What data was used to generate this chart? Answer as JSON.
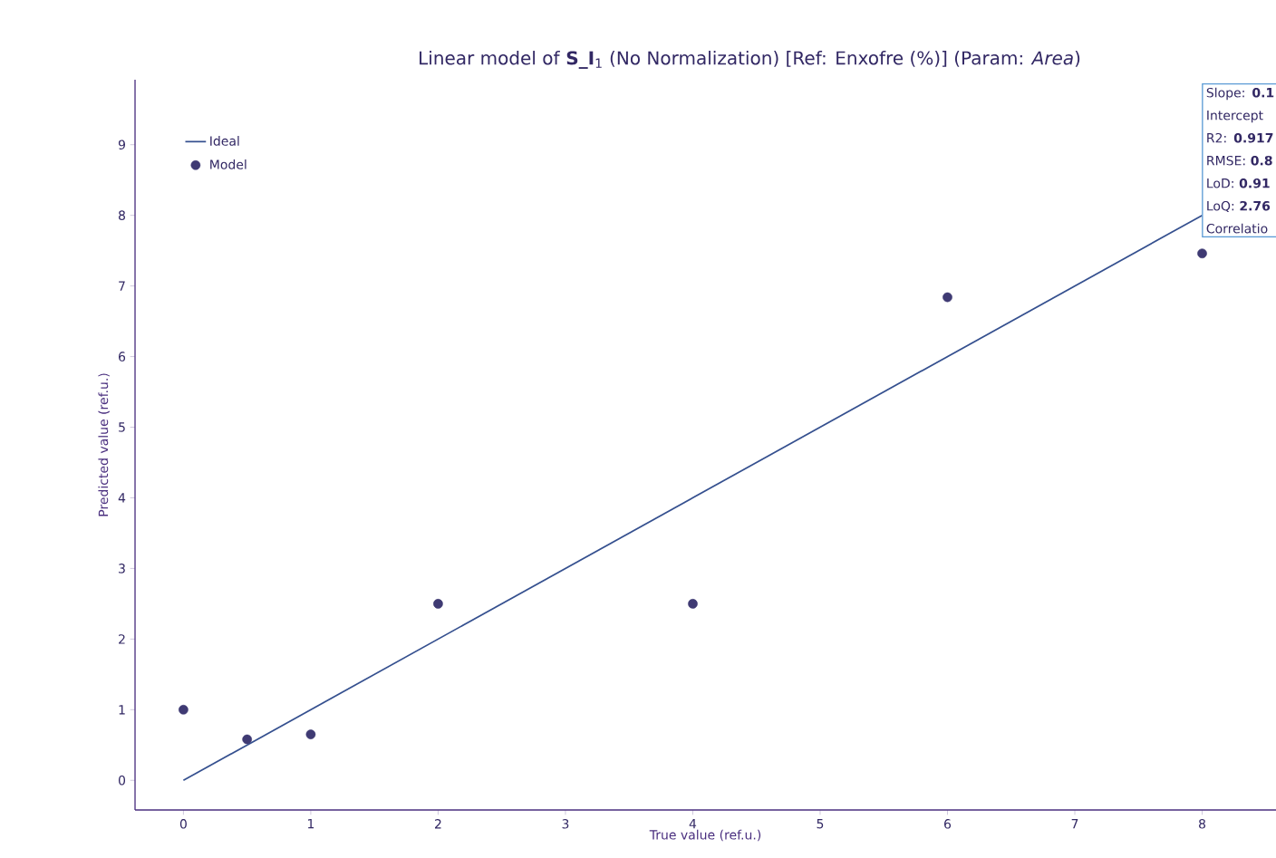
{
  "chart_data": {
    "type": "scatter",
    "title": "Linear model of **S_I**$_{1}$ (No Normalization) [Ref: Enxofre (%)] (Param: *Area*)",
    "xlabel": "True value (ref.u.)",
    "ylabel": "Predicted value (ref.u.)",
    "xlim": [
      -0.38,
      8.58
    ],
    "ylim": [
      -0.42,
      9.92
    ],
    "xticks": [
      0,
      1,
      2,
      3,
      4,
      5,
      6,
      7,
      8
    ],
    "yticks": [
      0,
      1,
      2,
      3,
      4,
      5,
      6,
      7,
      8,
      9
    ],
    "series": [
      {
        "name": "Ideal",
        "type": "line",
        "color": "#35508f",
        "x": [
          0,
          8
        ],
        "values": [
          0,
          8
        ],
        "marker": "none"
      },
      {
        "name": "Model",
        "color": "#3f3a73",
        "x": [
          0,
          0.5,
          1,
          2,
          4,
          6,
          8
        ],
        "values": [
          1.0,
          0.58,
          0.65,
          2.5,
          2.5,
          6.84,
          7.46
        ]
      }
    ],
    "legend": "top left",
    "marker": "circle",
    "grid": false,
    "annotations": [
      "Slope: **0.1**",
      "Intercept",
      "R2: **0.917**",
      "RMSE: **0.8**",
      "LoD: **0.91**",
      "LoQ: **2.76**",
      "Correlatio"
    ]
  }
}
